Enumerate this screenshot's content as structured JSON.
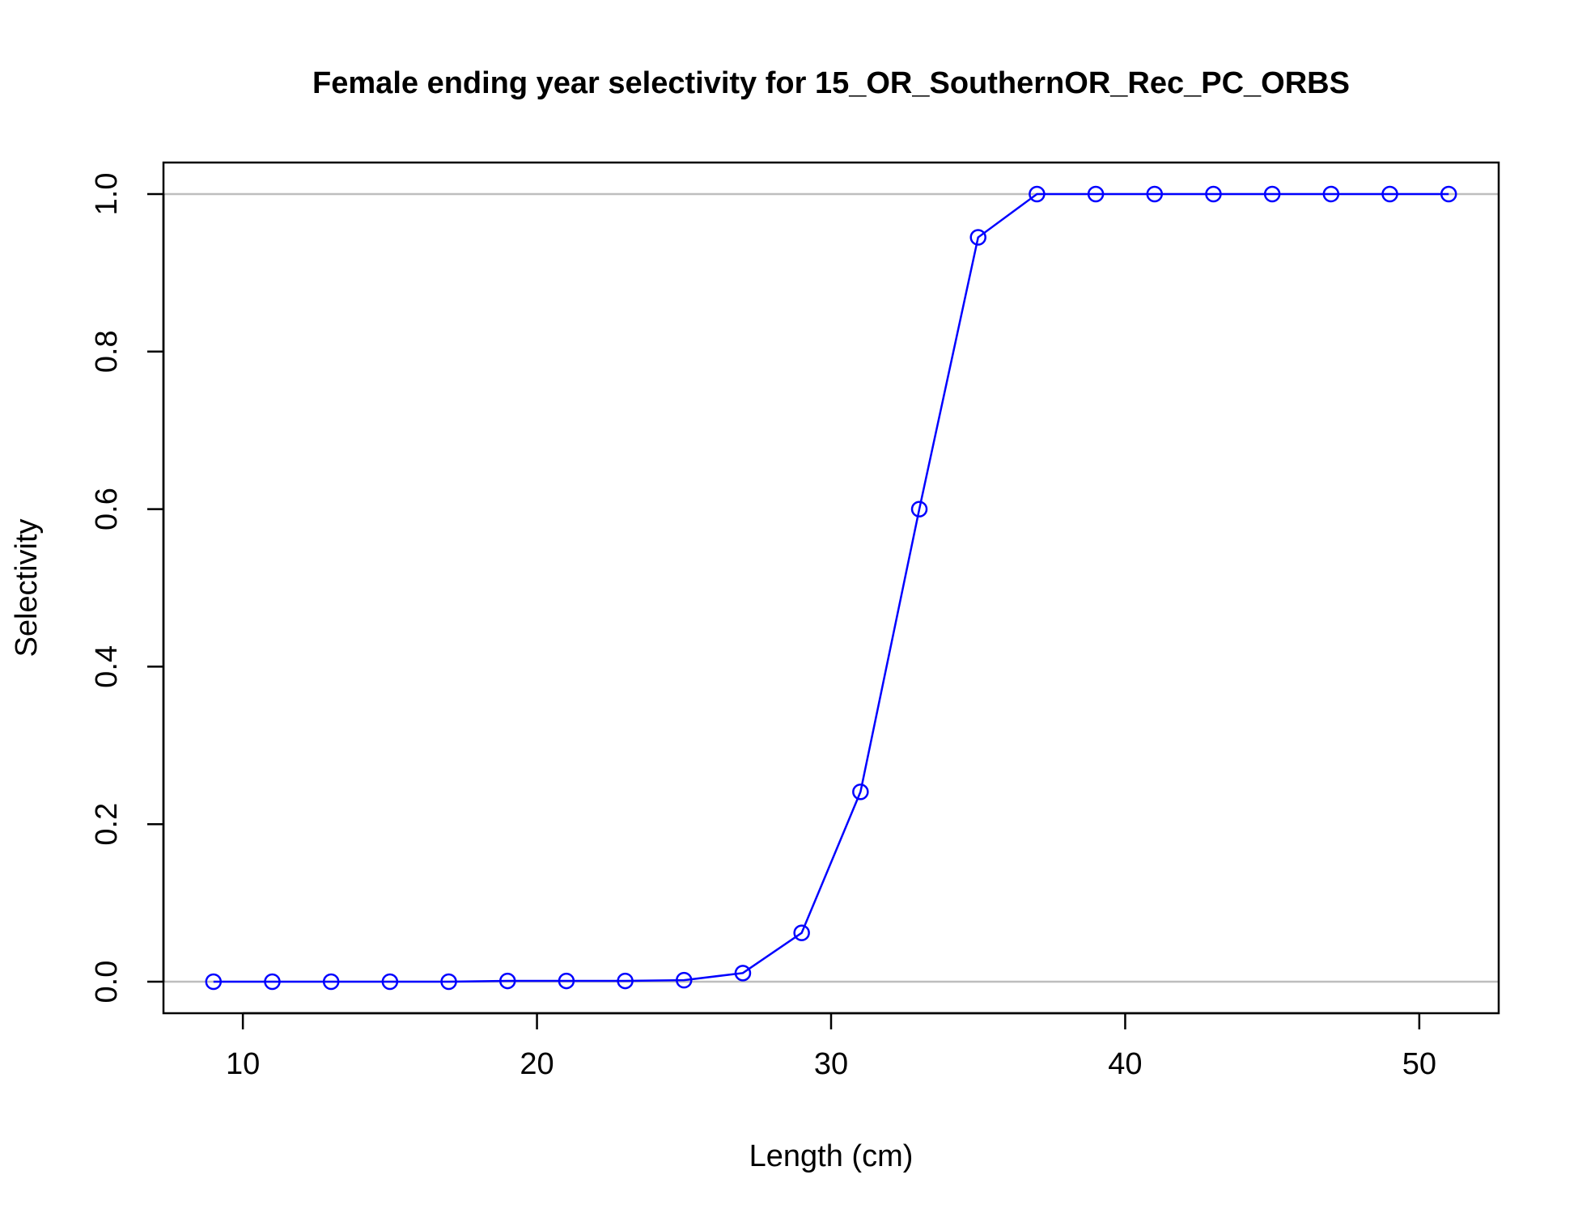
{
  "chart_data": {
    "type": "line",
    "title": "Female ending year selectivity for 15_OR_SouthernOR_Rec_PC_ORBS",
    "xlabel": "Length (cm)",
    "ylabel": "Selectivity",
    "xlim": [
      7.3,
      52.7
    ],
    "ylim": [
      -0.04,
      1.04
    ],
    "x_ticks": [
      10,
      20,
      30,
      40,
      50
    ],
    "x_tick_labels": [
      "10",
      "20",
      "30",
      "40",
      "50"
    ],
    "y_ticks": [
      0.0,
      0.2,
      0.4,
      0.6,
      0.8,
      1.0
    ],
    "y_tick_labels": [
      "0.0",
      "0.2",
      "0.4",
      "0.6",
      "0.8",
      "1.0"
    ],
    "reference_lines": [
      0,
      1
    ],
    "grid": false,
    "legend": "none",
    "series": [
      {
        "color": "#0000ff",
        "x": [
          9,
          11,
          13,
          15,
          17,
          19,
          21,
          23,
          25,
          27,
          29,
          31,
          33,
          35,
          37,
          39,
          41,
          43,
          45,
          47,
          49,
          51
        ],
        "values": [
          0.0,
          0.0,
          0.0,
          0.0,
          0.0,
          0.001,
          0.001,
          0.001,
          0.002,
          0.011,
          0.062,
          0.241,
          0.6,
          0.945,
          1.0,
          1.0,
          1.0,
          1.0,
          1.0,
          1.0,
          1.0,
          1.0
        ]
      }
    ],
    "colors": {
      "series": "#0000ff",
      "reference_line": "#bebebe",
      "axes": "#000000"
    }
  }
}
